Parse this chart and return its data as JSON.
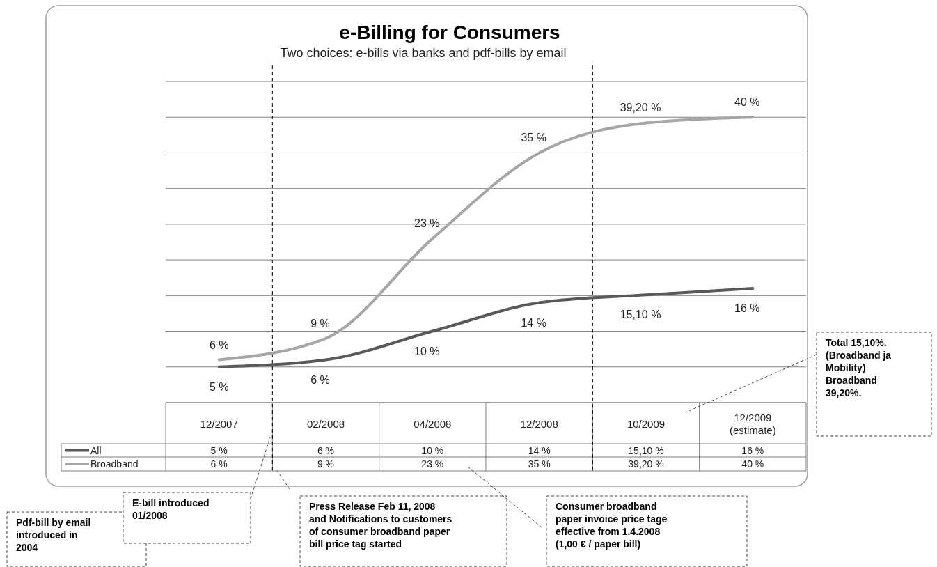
{
  "chart_data": {
    "type": "line",
    "title": "e-Billing for Consumers",
    "subtitle": "Two choices: e-bills via banks and pdf-bills by email",
    "categories": [
      "12/2007",
      "02/2008",
      "04/2008",
      "12/2008",
      "10/2009",
      "12/2009\n(estimate)"
    ],
    "series": [
      {
        "name": "All",
        "color": "#595959",
        "values": [
          5,
          6,
          10,
          14,
          15.1,
          16
        ],
        "value_labels": [
          "5 %",
          "6 %",
          "10 %",
          "14 %",
          "15,10 %",
          "16 %"
        ]
      },
      {
        "name": "Broadband",
        "color": "#a6a6a6",
        "values": [
          6,
          9,
          23,
          35,
          39.2,
          40
        ],
        "value_labels": [
          "6 %",
          "9 %",
          "23 %",
          "35 %",
          "39,20 %",
          "40 %"
        ]
      }
    ],
    "ylim": [
      0,
      45
    ],
    "yticks": [
      {
        "value": 0,
        "label": null
      },
      {
        "value": 5,
        "label": null
      },
      {
        "value": 10,
        "label": null
      },
      {
        "value": 15,
        "label": null
      },
      {
        "value": 20,
        "label": null
      },
      {
        "value": 25,
        "label": null
      },
      {
        "value": 30,
        "label": null
      },
      {
        "value": 35,
        "label": null
      },
      {
        "value": 40,
        "label": null
      },
      {
        "value": 45,
        "label": null
      }
    ],
    "grid": "y",
    "legend": "bottom",
    "marker": "none",
    "line_style": "solid",
    "annotations": [
      "Pdf-bill by email\nintroduced in\n2004",
      "E-bill introduced\n01/2008",
      "Press Release Feb 11, 2008\nand Notifications to customers\nof consumer broadband paper\nbill price tag started",
      "Consumer broadband\npaper invoice price tage\neffective from 1.4.2008\n(1,00 € / paper bill)",
      "Total 15,10%.\n(Broadband ja\nMobility)\nBroadband\n39,20%."
    ]
  }
}
